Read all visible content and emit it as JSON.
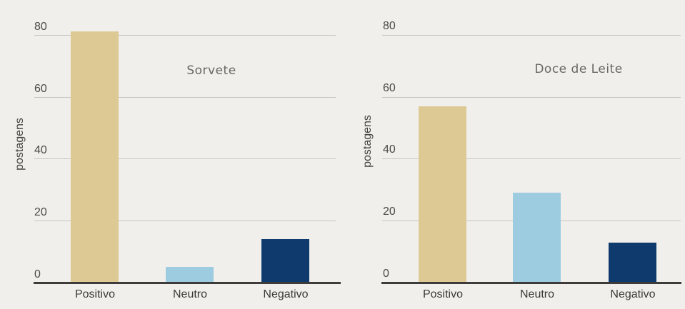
{
  "figure": {
    "background": "#f1efec",
    "description": "Two side-by-side bar charts of sentiment post counts"
  },
  "colors": {
    "background": "#f1efec",
    "gridline": "#c9c6c1",
    "axis_line": "#3d3c3a",
    "tick_text": "#4b4a47",
    "category_text": "#3b3a37",
    "title_text": "#6b6762",
    "ylabel_text": "#454340",
    "bar_positive": "#ddc993",
    "bar_neutral": "#9dcce0",
    "bar_negative": "#0e3a6e"
  },
  "chart_data": [
    {
      "type": "bar",
      "title": "Sorvete",
      "xlabel": "",
      "ylabel": "postagens",
      "categories": [
        "Positivo",
        "Neutro",
        "Negativo"
      ],
      "values": [
        81,
        5,
        14
      ],
      "bar_colors": [
        "#ddc993",
        "#9dcce0",
        "#0e3a6e"
      ],
      "yticks": [
        "0",
        "20",
        "40",
        "60",
        "80"
      ],
      "ylim": [
        0,
        86
      ],
      "grid": true,
      "legend_position": "none"
    },
    {
      "type": "bar",
      "title": "Doce de Leite",
      "xlabel": "",
      "ylabel": "postagens",
      "categories": [
        "Positivo",
        "Neutro",
        "Negativo"
      ],
      "values": [
        57,
        29,
        13
      ],
      "bar_colors": [
        "#ddc993",
        "#9dcce0",
        "#0e3a6e"
      ],
      "yticks": [
        "0",
        "20",
        "40",
        "60",
        "80"
      ],
      "ylim": [
        0,
        86
      ],
      "grid": true,
      "legend_position": "none"
    }
  ]
}
